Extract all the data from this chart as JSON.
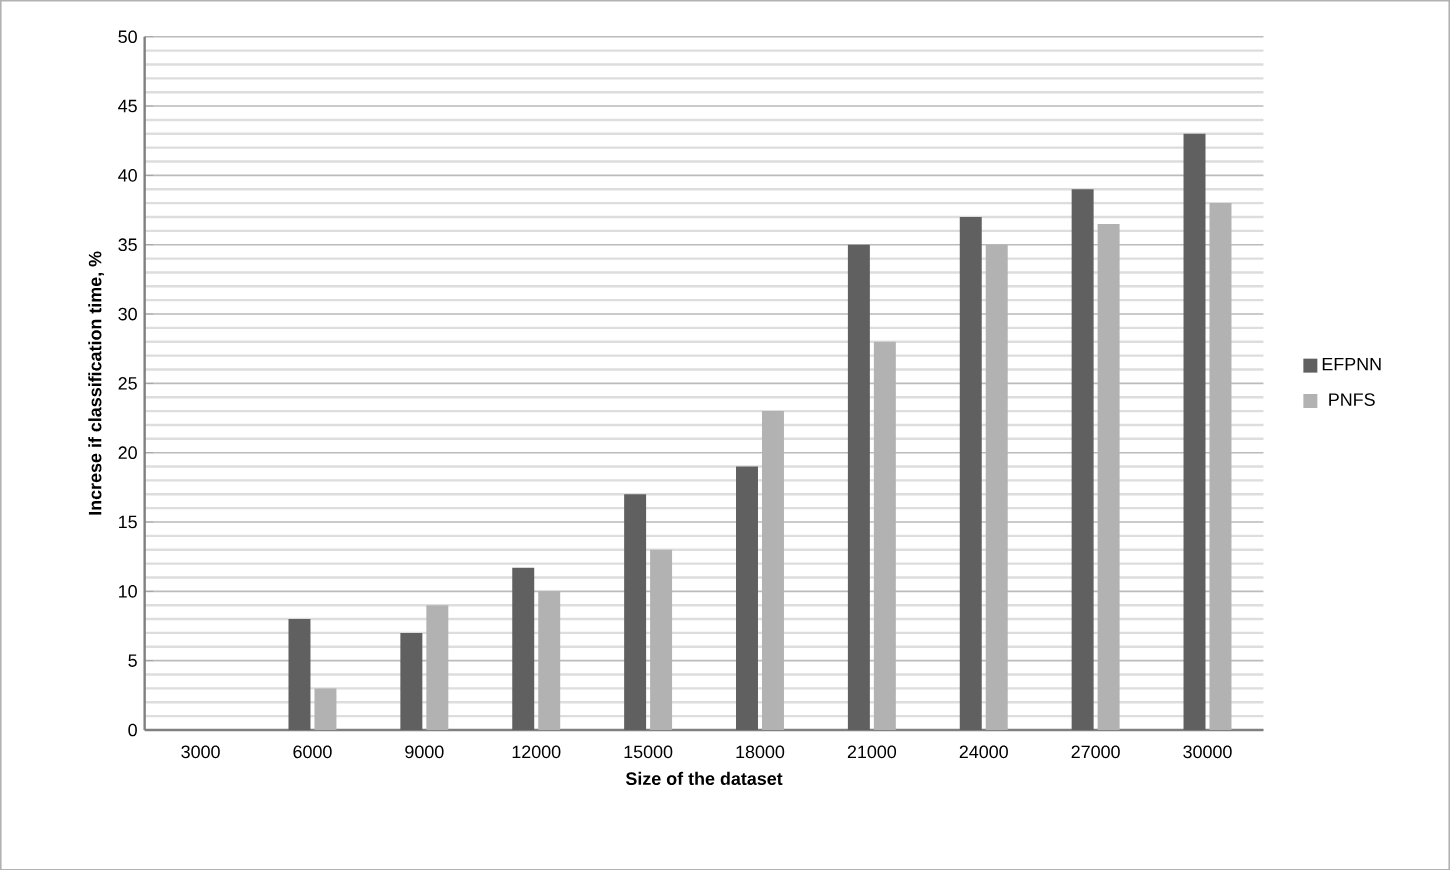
{
  "chart_data": {
    "type": "bar",
    "xlabel": "Size of the dataset",
    "ylabel": "Increse if classification time, %",
    "categories": [
      "3000",
      "6000",
      "9000",
      "12000",
      "15000",
      "18000",
      "21000",
      "24000",
      "27000",
      "30000"
    ],
    "series": [
      {
        "name": "EFPNN",
        "color": "#606060",
        "values": [
          0,
          8,
          7,
          11.7,
          17,
          19,
          35,
          37,
          39,
          43
        ]
      },
      {
        "name": "PNFS",
        "color": "#b2b2b2",
        "values": [
          0,
          3,
          9,
          10,
          13,
          23,
          28,
          35,
          36.5,
          38
        ]
      }
    ],
    "ylim": [
      0,
      50
    ],
    "yticks": [
      0,
      5,
      10,
      15,
      20,
      25,
      30,
      35,
      40,
      45,
      50
    ],
    "grid": "y",
    "legend": "right"
  }
}
